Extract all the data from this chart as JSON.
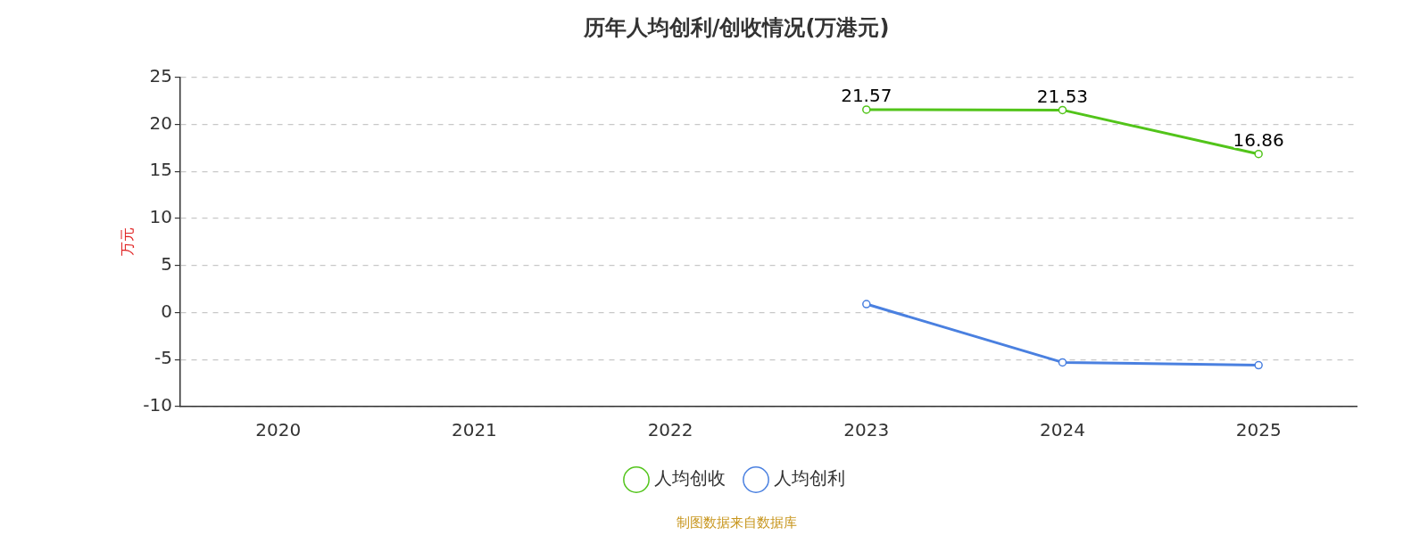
{
  "chart_data": {
    "type": "line",
    "title": "历年人均创利/创收情况(万港元)",
    "ylabel": "万元",
    "categories": [
      "2020",
      "2021",
      "2022",
      "2023",
      "2024",
      "2025"
    ],
    "series": [
      {
        "name": "人均创收",
        "color": "#52c41a",
        "values": [
          null,
          null,
          null,
          21.57,
          21.53,
          16.86
        ],
        "value_labels": [
          null,
          null,
          null,
          "21.57",
          "21.53",
          "16.86"
        ]
      },
      {
        "name": "人均创利",
        "color": "#4a80e0",
        "values": [
          null,
          null,
          null,
          0.9,
          -5.3,
          -5.6
        ]
      }
    ],
    "ylim": [
      -10,
      25
    ],
    "yticks": [
      -10,
      -5,
      0,
      5,
      10,
      15,
      20,
      25
    ],
    "grid": "y",
    "legend": "bottom",
    "marker": "circle",
    "line_style": "solid",
    "annotations": [
      "制图数据来自数据库"
    ]
  }
}
